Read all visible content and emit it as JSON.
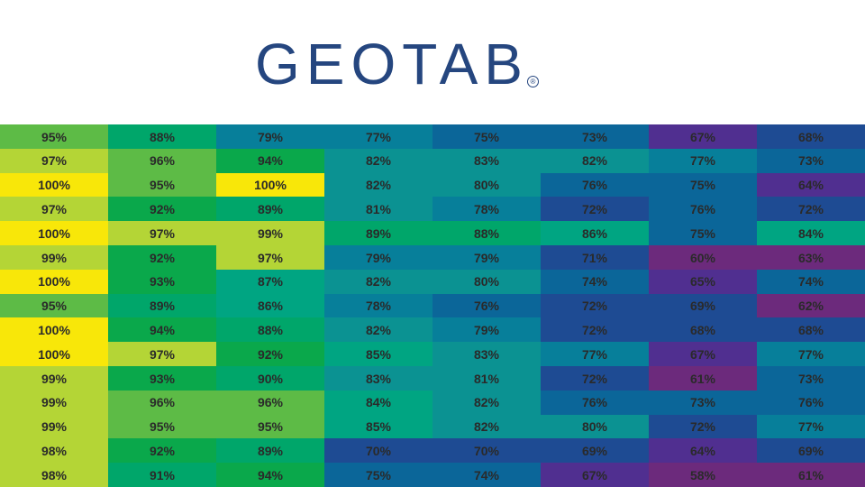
{
  "logo": {
    "text": "GEOTAB",
    "registered": "®"
  },
  "colors": {
    "brand": "#25467f",
    "scale": [
      "#f8e709",
      "#b4d536",
      "#5dbb46",
      "#0aa84b",
      "#00a66a",
      "#00a582",
      "#0b9292",
      "#077f9a",
      "#0b6699",
      "#1e4b93",
      "#502f90",
      "#6c2a7c"
    ]
  },
  "chart_data": {
    "type": "heatmap",
    "value_format": "{v}%",
    "rows": [
      [
        95,
        88,
        79,
        77,
        75,
        73,
        67,
        68
      ],
      [
        97,
        96,
        94,
        82,
        83,
        82,
        77,
        73
      ],
      [
        100,
        95,
        100,
        82,
        80,
        76,
        75,
        64
      ],
      [
        97,
        92,
        89,
        81,
        78,
        72,
        76,
        72
      ],
      [
        100,
        97,
        99,
        89,
        88,
        86,
        75,
        84
      ],
      [
        99,
        92,
        97,
        79,
        79,
        71,
        60,
        63
      ],
      [
        100,
        93,
        87,
        82,
        80,
        74,
        65,
        74
      ],
      [
        95,
        89,
        86,
        78,
        76,
        72,
        69,
        62
      ],
      [
        100,
        94,
        88,
        82,
        79,
        72,
        68,
        68
      ],
      [
        100,
        97,
        92,
        85,
        83,
        77,
        67,
        77
      ],
      [
        99,
        93,
        90,
        83,
        81,
        72,
        61,
        73
      ],
      [
        99,
        96,
        96,
        84,
        82,
        76,
        73,
        76
      ],
      [
        99,
        95,
        95,
        85,
        82,
        80,
        72,
        77
      ],
      [
        98,
        92,
        89,
        70,
        70,
        69,
        64,
        69
      ],
      [
        98,
        91,
        94,
        75,
        74,
        67,
        58,
        61
      ]
    ]
  }
}
